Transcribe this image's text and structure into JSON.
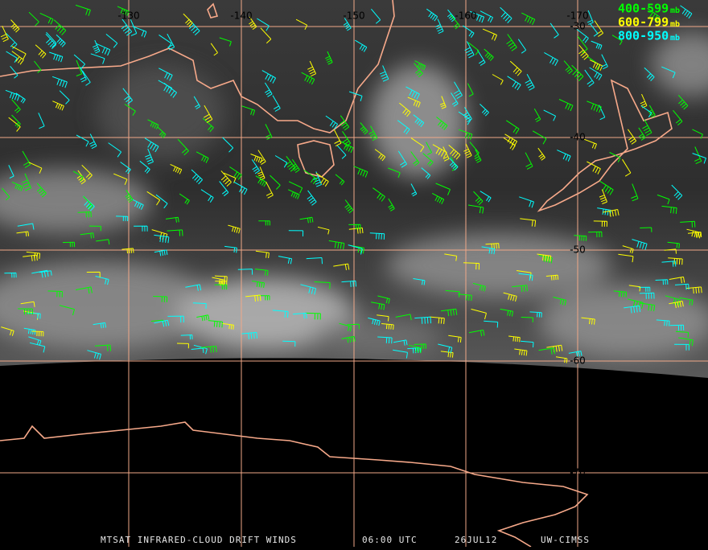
{
  "map": {
    "longitude_labels": [
      "-130",
      "-140",
      "-150",
      "-160",
      "-170"
    ],
    "latitude_labels": [
      "-30",
      "-40",
      "-50",
      "-60",
      "-70"
    ],
    "legend": [
      {
        "label": "400-599",
        "unit": "mb",
        "color": "#00ff00"
      },
      {
        "label": "600-799",
        "unit": "mb",
        "color": "#ffff00"
      },
      {
        "label": "800-950",
        "unit": "mb",
        "color": "#00ffff"
      }
    ],
    "footer": {
      "title": "MTSAT INFRARED-CLOUD DRIFT WINDS",
      "time": "06:00 UTC",
      "date": "26JUL12",
      "source": "UW-CIMSS"
    }
  }
}
